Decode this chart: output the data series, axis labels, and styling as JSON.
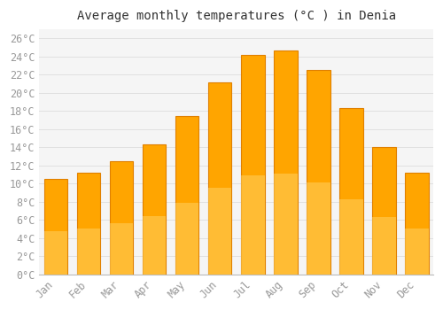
{
  "title": "Average monthly temperatures (°C ) in Denia",
  "months": [
    "Jan",
    "Feb",
    "Mar",
    "Apr",
    "May",
    "Jun",
    "Jul",
    "Aug",
    "Sep",
    "Oct",
    "Nov",
    "Dec"
  ],
  "temperatures": [
    10.5,
    11.2,
    12.5,
    14.3,
    17.5,
    21.2,
    24.2,
    24.7,
    22.5,
    18.3,
    14.0,
    11.2
  ],
  "bar_color_main": "#FFA500",
  "bar_color_edge": "#E08000",
  "bar_color_light": "#FFD060",
  "background_color": "#ffffff",
  "plot_bg_color": "#f5f5f5",
  "grid_color": "#e0e0e0",
  "text_color": "#999999",
  "title_color": "#333333",
  "ylim": [
    0,
    27
  ],
  "yticks": [
    0,
    2,
    4,
    6,
    8,
    10,
    12,
    14,
    16,
    18,
    20,
    22,
    24,
    26
  ],
  "title_fontsize": 10,
  "tick_fontsize": 8.5,
  "bar_width": 0.72
}
